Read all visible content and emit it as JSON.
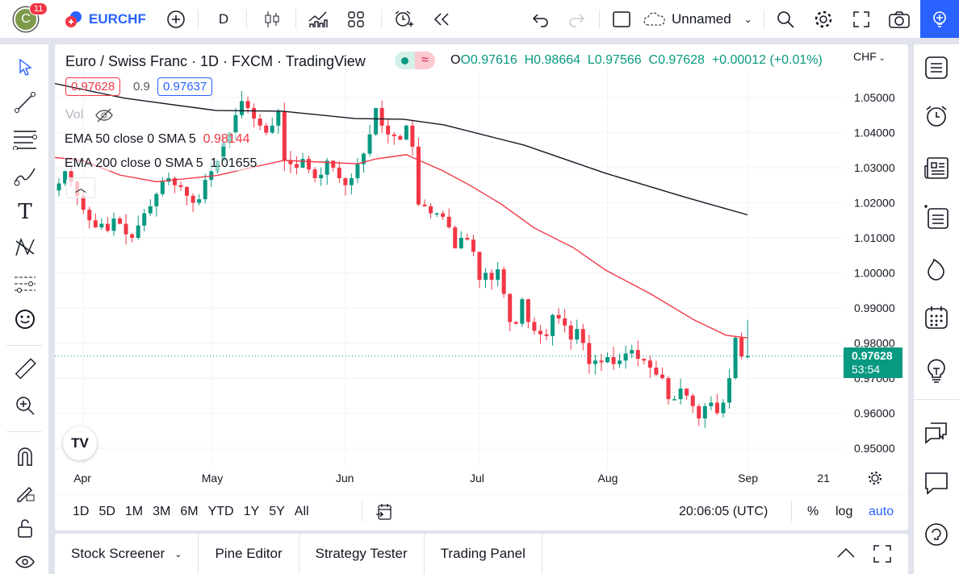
{
  "topbar": {
    "notifications": "11",
    "avatar_letter": "C",
    "symbol": "EURCHF",
    "interval": "D",
    "layout_name": "Unnamed"
  },
  "legend": {
    "title": "Euro / Swiss Franc · 1D · FXCM · TradingView",
    "open": "O0.97616",
    "high": "H0.98664",
    "low": "L0.97566",
    "close": "C0.97628",
    "change": "+0.00012 (+0.01%)",
    "sell_price": "0.97628",
    "spread": "0.9",
    "buy_price": "0.97637",
    "vol_label": "Vol",
    "ema50_label": "EMA 50 close 0 SMA 5",
    "ema50_value": "0.98144",
    "ema200_label": "EMA 200 close 0 SMA 5",
    "ema200_value": "1.01655"
  },
  "price_axis": {
    "currency": "CHF",
    "current_price": "0.97628",
    "countdown": "53:54"
  },
  "bottom_bar": {
    "ranges": [
      "1D",
      "5D",
      "1M",
      "3M",
      "6M",
      "YTD",
      "1Y",
      "5Y",
      "All"
    ],
    "clock": "20:06:05 (UTC)",
    "percent": "%",
    "log": "log",
    "auto": "auto"
  },
  "panel_tabs": [
    "Stock Screener",
    "Pine Editor",
    "Strategy Tester",
    "Trading Panel"
  ],
  "colors": {
    "up": "#089981",
    "down": "#f23645",
    "ema50": "#f23645",
    "ema200": "#131722",
    "accent": "#2962ff"
  },
  "chart_data": {
    "type": "candlestick",
    "ylim": [
      0.945,
      1.058
    ],
    "y_ticks": [
      "1.05000",
      "1.04000",
      "1.03000",
      "1.02000",
      "1.01000",
      "1.00000",
      "0.99000",
      "0.98000",
      "0.97000",
      "0.96000",
      "0.95000"
    ],
    "x_ticks": [
      {
        "label": "Apr",
        "bar": 4
      },
      {
        "label": "May",
        "bar": 25
      },
      {
        "label": "Jun",
        "bar": 47
      },
      {
        "label": "Jul",
        "bar": 69
      },
      {
        "label": "Aug",
        "bar": 90
      },
      {
        "label": "Sep",
        "bar": 113
      },
      {
        "label": "21",
        "bar": 126
      }
    ],
    "close": [
      1.0255,
      1.029,
      1.026,
      1.022,
      1.018,
      1.015,
      1.013,
      1.014,
      1.012,
      1.0155,
      1.014,
      1.011,
      1.01,
      1.0135,
      1.017,
      1.019,
      1.0225,
      1.026,
      1.027,
      1.025,
      1.0245,
      1.022,
      1.02,
      1.021,
      1.0265,
      1.029,
      1.032,
      1.037,
      1.04,
      1.045,
      1.049,
      1.047,
      1.044,
      1.042,
      1.04,
      1.042,
      1.046,
      1.032,
      1.031,
      1.03,
      1.0325,
      1.0295,
      1.027,
      1.028,
      1.032,
      1.03,
      1.027,
      1.025,
      1.027,
      1.031,
      1.034,
      1.0395,
      1.047,
      1.042,
      1.0395,
      1.039,
      1.038,
      1.042,
      1.036,
      1.0195,
      1.019,
      1.017,
      1.017,
      1.016,
      1.013,
      1.007,
      1.01,
      1.0095,
      1.006,
      0.998,
      1.0,
      0.998,
      1.001,
      0.994,
      0.986,
      0.9855,
      0.9925,
      0.986,
      0.9835,
      0.9825,
      0.982,
      0.988,
      0.987,
      0.985,
      0.981,
      0.984,
      0.98,
      0.974,
      0.975,
      0.9745,
      0.976,
      0.974,
      0.975,
      0.977,
      0.978,
      0.9755,
      0.975,
      0.973,
      0.971,
      0.97,
      0.964,
      0.964,
      0.967,
      0.965,
      0.962,
      0.9585,
      0.962,
      0.963,
      0.96,
      0.963,
      0.97,
      0.9815,
      0.97616,
      0.97628
    ],
    "last_bar": {
      "open": 0.97616,
      "high": 0.98664,
      "low": 0.97566,
      "close": 0.97628
    },
    "ema50": [
      [
        -1,
        1.033
      ],
      [
        4,
        1.032
      ],
      [
        10,
        1.0279
      ],
      [
        16,
        1.026
      ],
      [
        26,
        1.0278
      ],
      [
        32,
        1.0302
      ],
      [
        37,
        1.0321
      ],
      [
        49,
        1.0311
      ],
      [
        52,
        1.0325
      ],
      [
        57,
        1.0337
      ],
      [
        63,
        1.0291
      ],
      [
        67.5,
        1.0249
      ],
      [
        72.5,
        1.0197
      ],
      [
        78,
        1.0128
      ],
      [
        84.4,
        1.0072
      ],
      [
        89.7,
        1.0008
      ],
      [
        97.2,
        0.9939
      ],
      [
        104.2,
        0.9866
      ],
      [
        109.5,
        0.9822
      ],
      [
        113,
        0.98144
      ]
    ],
    "ema200": [
      [
        -1,
        1.0541
      ],
      [
        10.8,
        1.0498
      ],
      [
        25.8,
        1.0463
      ],
      [
        36.7,
        1.0461
      ],
      [
        48.6,
        1.044
      ],
      [
        56.6,
        1.0438
      ],
      [
        63.2,
        1.0422
      ],
      [
        76.4,
        1.0364
      ],
      [
        89.7,
        1.0284
      ],
      [
        102.9,
        1.0215
      ],
      [
        113,
        1.01655
      ]
    ]
  }
}
